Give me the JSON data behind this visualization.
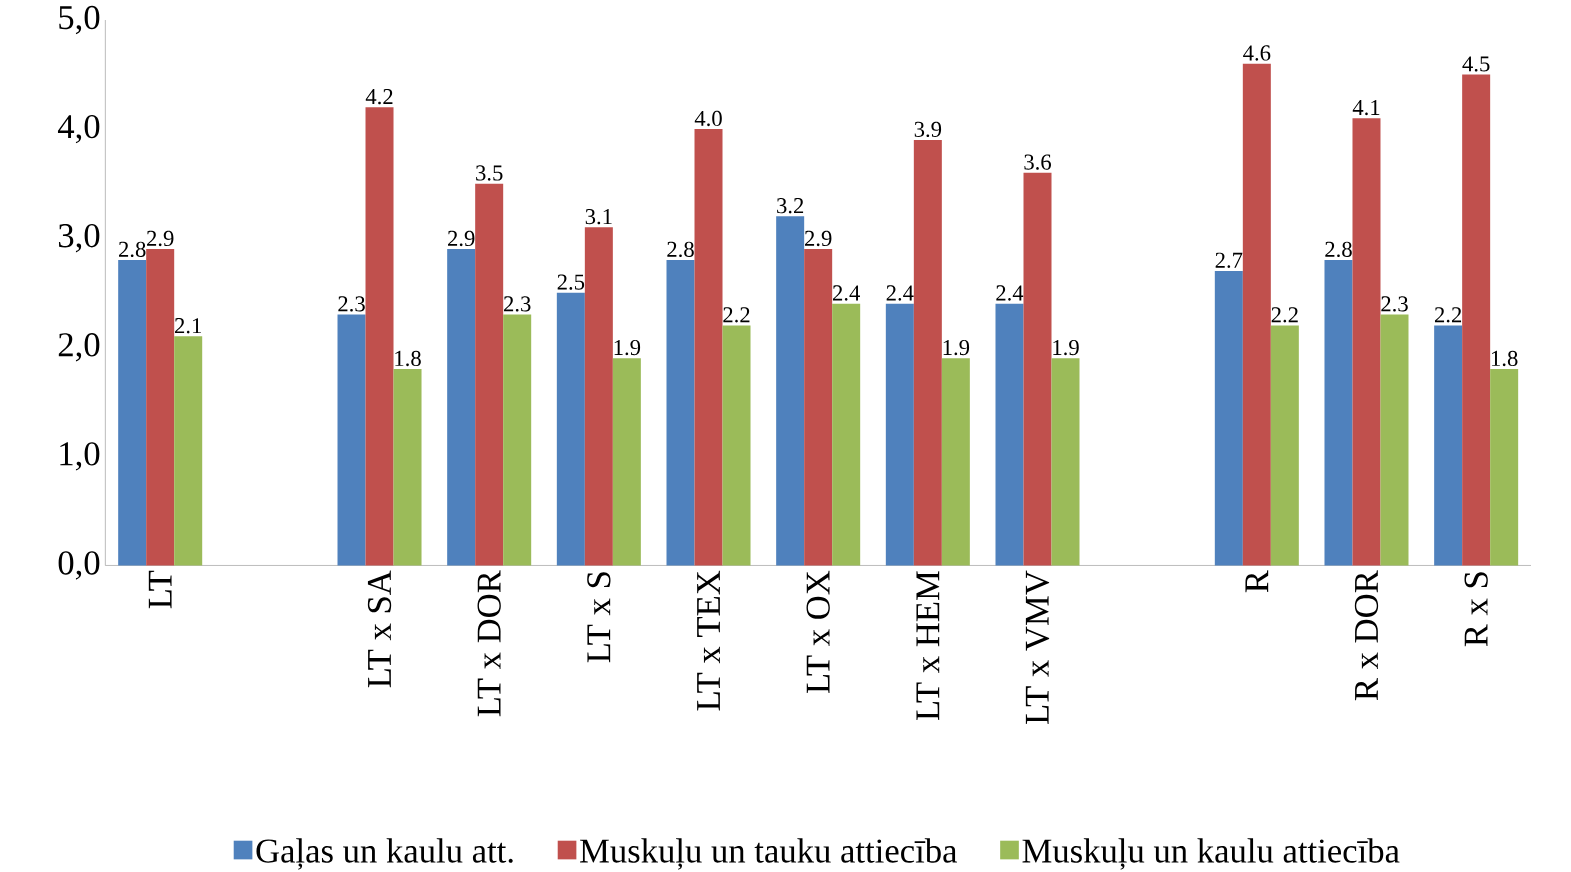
{
  "chart_data": {
    "type": "bar",
    "categories": [
      "LT",
      null,
      "LT x SA",
      "LT x DOR",
      "LT x S",
      "LT x TEX",
      "LT x OX",
      "LT x HEM",
      "LT x VMV",
      null,
      "R",
      "R x DOR",
      "R x S"
    ],
    "series": [
      {
        "name": "Gaļas un kaulu att.",
        "color": "#4f81bd",
        "values": [
          2.8,
          null,
          2.3,
          2.9,
          2.5,
          2.8,
          3.2,
          2.4,
          2.4,
          null,
          2.7,
          2.8,
          2.2
        ],
        "value_labels": [
          "2.8",
          null,
          "2.3",
          "2.9",
          "2.5",
          "2.8",
          "3.2",
          "2.4",
          "2.4",
          null,
          "2.7",
          "2.8",
          "2.2"
        ]
      },
      {
        "name": "Muskuļu un tauku attiecība",
        "color": "#c0504d",
        "values": [
          2.9,
          null,
          4.2,
          3.5,
          3.1,
          4.0,
          2.9,
          3.9,
          3.6,
          null,
          4.6,
          4.1,
          4.5
        ],
        "value_labels": [
          "2.9",
          null,
          "4.2",
          "3.5",
          "3.1",
          "4.0",
          "2.9",
          "3.9",
          "3.6",
          null,
          "4.6",
          "4.1",
          "4.5"
        ]
      },
      {
        "name": "Muskuļu un kaulu attiecība",
        "color": "#9bbb59",
        "values": [
          2.1,
          null,
          1.8,
          2.3,
          1.9,
          2.2,
          2.4,
          1.9,
          1.9,
          null,
          2.2,
          2.3,
          1.8
        ],
        "value_labels": [
          "2.1",
          null,
          "1.8",
          "2.3",
          "1.9",
          "2.2",
          "2.4",
          "1.9",
          "1.9",
          null,
          "2.2",
          "2.3",
          "1.8"
        ]
      }
    ],
    "ylim": [
      0,
      5
    ],
    "yticks": [
      {
        "value": 0,
        "label": "0,0"
      },
      {
        "value": 1,
        "label": "1,0"
      },
      {
        "value": 2,
        "label": "2,0"
      },
      {
        "value": 3,
        "label": "3,0"
      },
      {
        "value": 4,
        "label": "4,0"
      },
      {
        "value": 5,
        "label": "5,0"
      }
    ],
    "grid": false,
    "legend": "bottom"
  }
}
